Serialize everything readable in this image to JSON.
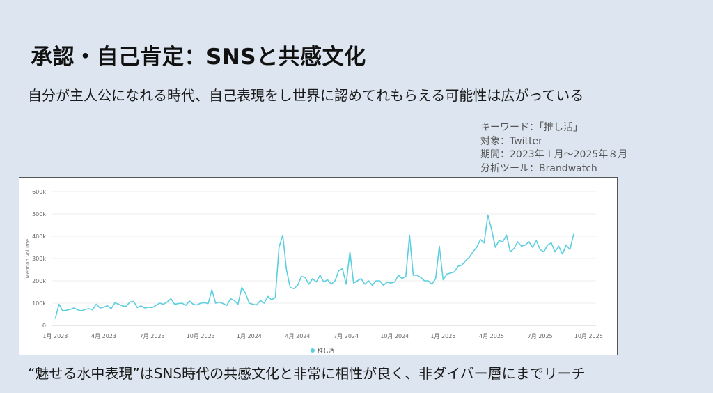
{
  "slide": {
    "title": "承認・自己肯定：SNSと共感文化",
    "subtitle": "自分が主人公になれる時代、自己表現をし世界に認めてれもらえる可能性は広がっている",
    "meta": [
      "キーワード：「推し活」",
      "対象：Twitter",
      "期間：2023年１月～2025年８月",
      "分析ツール：Brandwatch"
    ],
    "footer": "“魅せる水中表現”はSNS時代の共感文化と非常に相性が良く、非ダイバー層にまでリーチ"
  },
  "chart_data": {
    "type": "line",
    "ylabel": "Mention Volume",
    "yticks": [
      "0",
      "100k",
      "200k",
      "300k",
      "400k",
      "500k",
      "600k"
    ],
    "ylim": [
      0,
      600000
    ],
    "xticks": [
      {
        "label": "1月 2023",
        "x": 0
      },
      {
        "label": "4月 2023",
        "x": 13
      },
      {
        "label": "7月 2023",
        "x": 26
      },
      {
        "label": "10月 2023",
        "x": 39
      },
      {
        "label": "1月 2024",
        "x": 52
      },
      {
        "label": "4月 2024",
        "x": 65
      },
      {
        "label": "7月 2024",
        "x": 78
      },
      {
        "label": "10月 2024",
        "x": 91
      },
      {
        "label": "1月 2025",
        "x": 104
      },
      {
        "label": "4月 2025",
        "x": 117
      },
      {
        "label": "7月 2025",
        "x": 130
      },
      {
        "label": "10月 2025",
        "x": 143
      }
    ],
    "xlim": [
      -1,
      145
    ],
    "grid": true,
    "legend_position": "bottom-center",
    "series": [
      {
        "name": "推し活",
        "color": "#5bcfdf",
        "values": [
          30000,
          95000,
          65000,
          68000,
          72000,
          78000,
          70000,
          65000,
          72000,
          75000,
          70000,
          95000,
          78000,
          82000,
          88000,
          75000,
          102000,
          95000,
          88000,
          85000,
          105000,
          108000,
          80000,
          88000,
          78000,
          82000,
          80000,
          90000,
          100000,
          95000,
          105000,
          120000,
          95000,
          98000,
          100000,
          90000,
          110000,
          95000,
          92000,
          100000,
          102000,
          98000,
          160000,
          100000,
          105000,
          98000,
          90000,
          120000,
          112000,
          95000,
          170000,
          145000,
          100000,
          95000,
          92000,
          112000,
          100000,
          130000,
          115000,
          125000,
          350000,
          405000,
          250000,
          170000,
          165000,
          180000,
          220000,
          215000,
          185000,
          210000,
          195000,
          225000,
          195000,
          205000,
          185000,
          200000,
          245000,
          255000,
          185000,
          330000,
          190000,
          200000,
          210000,
          185000,
          200000,
          180000,
          200000,
          200000,
          180000,
          195000,
          190000,
          195000,
          225000,
          210000,
          220000,
          405000,
          225000,
          225000,
          215000,
          200000,
          200000,
          185000,
          210000,
          355000,
          205000,
          230000,
          235000,
          240000,
          265000,
          270000,
          290000,
          305000,
          330000,
          350000,
          385000,
          370000,
          495000,
          430000,
          350000,
          380000,
          375000,
          405000,
          330000,
          345000,
          375000,
          355000,
          360000,
          375000,
          350000,
          380000,
          340000,
          330000,
          360000,
          370000,
          330000,
          355000,
          320000,
          360000,
          340000,
          410000
        ]
      }
    ]
  }
}
